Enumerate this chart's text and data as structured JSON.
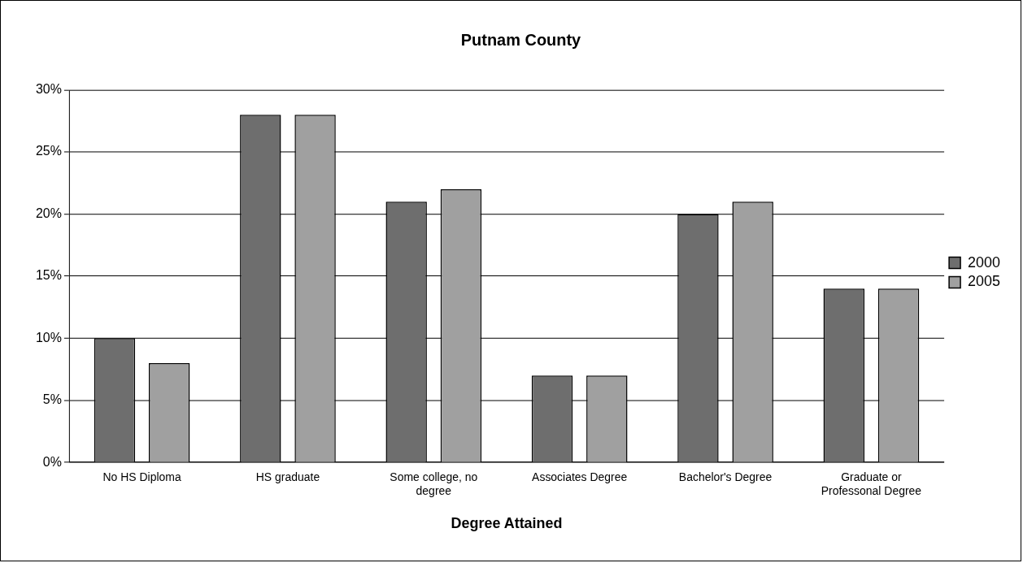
{
  "chart_data": {
    "type": "bar",
    "title": "Putnam County",
    "xlabel": "Degree Attained",
    "categories": [
      "No HS Diploma",
      "HS graduate",
      "Some college, no degree",
      "Associates Degree",
      "Bachelor's Degree",
      "Graduate or Professonal Degree"
    ],
    "series": [
      {
        "name": "2000",
        "color": "#6e6e6e",
        "values": [
          10,
          28,
          21,
          7,
          20,
          14
        ]
      },
      {
        "name": "2005",
        "color": "#a0a0a0",
        "values": [
          8,
          28,
          22,
          7,
          21,
          14
        ]
      }
    ],
    "ylim": [
      0,
      30
    ],
    "yticks": [
      {
        "value": 0,
        "label": "0%"
      },
      {
        "value": 5,
        "label": "5%"
      },
      {
        "value": 10,
        "label": "10%"
      },
      {
        "value": 15,
        "label": "15%"
      },
      {
        "value": 20,
        "label": "20%"
      },
      {
        "value": 25,
        "label": "25%"
      },
      {
        "value": 30,
        "label": "30%"
      }
    ],
    "grid": "y",
    "legend": "right"
  }
}
